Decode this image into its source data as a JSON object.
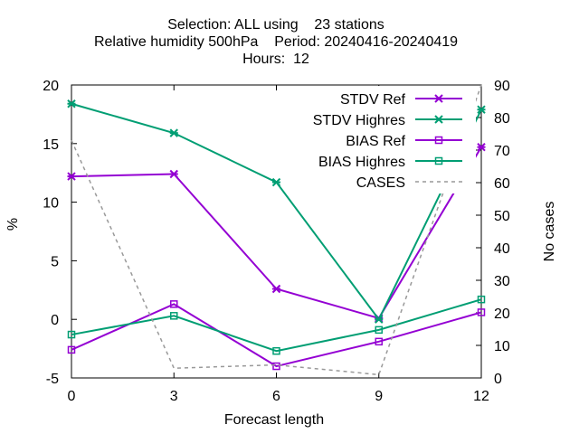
{
  "chart_data": {
    "type": "line",
    "title_lines": [
      "Selection: ALL using    23 stations",
      "Relative humidity 500hPa    Period: 20240416-20240419",
      "Hours:  12"
    ],
    "xlabel": "Forecast length",
    "ylabel": "%",
    "y2label": "No cases",
    "x": [
      0,
      3,
      6,
      9,
      12
    ],
    "x_ticks": [
      "0",
      "3",
      "6",
      "9",
      "12"
    ],
    "xlim": [
      0,
      12
    ],
    "ylim": [
      -5,
      20
    ],
    "y_ticks": [
      "20",
      "15",
      "10",
      "5",
      "0",
      "-5"
    ],
    "y2lim": [
      0,
      90
    ],
    "y2_ticks": [
      "90",
      "80",
      "70",
      "60",
      "50",
      "40",
      "30",
      "20",
      "10",
      "0"
    ],
    "legend_position": "top-right",
    "grid": false,
    "series": [
      {
        "name": "STDV Ref",
        "axis": "y",
        "color": "#9400d3",
        "marker": "star",
        "values": [
          12.2,
          12.4,
          2.6,
          0.1,
          14.7
        ]
      },
      {
        "name": "STDV Highres",
        "axis": "y",
        "color": "#009e73",
        "marker": "star",
        "values": [
          18.4,
          15.9,
          11.7,
          0.0,
          17.9
        ]
      },
      {
        "name": "BIAS Ref",
        "axis": "y",
        "color": "#9400d3",
        "marker": "square",
        "values": [
          -2.6,
          1.3,
          -4.0,
          -1.9,
          0.6
        ]
      },
      {
        "name": "BIAS Highres",
        "axis": "y",
        "color": "#009e73",
        "marker": "square",
        "values": [
          -1.3,
          0.3,
          -2.7,
          -0.9,
          1.7
        ]
      },
      {
        "name": "CASES",
        "axis": "y2",
        "color": "#999999",
        "marker": "none",
        "dashed": true,
        "values": [
          73,
          3,
          4,
          1,
          90
        ]
      }
    ]
  }
}
